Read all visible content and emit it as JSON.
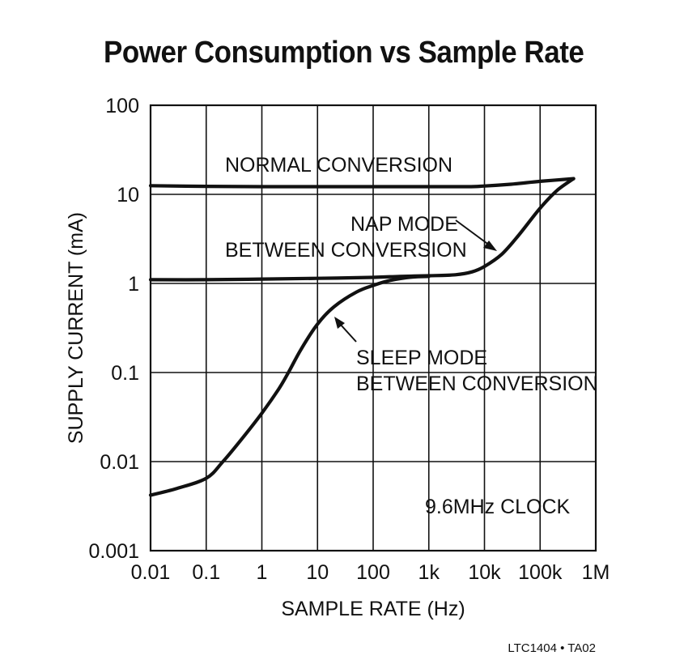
{
  "chart_data": {
    "type": "line",
    "title": "Power Consumption vs Sample Rate",
    "xlabel": "SAMPLE RATE (Hz)",
    "ylabel": "SUPPLY CURRENT (mA)",
    "xscale": "log",
    "yscale": "log",
    "xlim": [
      0.01,
      1000000
    ],
    "ylim": [
      0.001,
      100
    ],
    "grid": true,
    "x_ticks": [
      {
        "value": 0.01,
        "label": "0.01"
      },
      {
        "value": 0.1,
        "label": "0.1"
      },
      {
        "value": 1,
        "label": "1"
      },
      {
        "value": 10,
        "label": "10"
      },
      {
        "value": 100,
        "label": "100"
      },
      {
        "value": 1000,
        "label": "1k"
      },
      {
        "value": 10000,
        "label": "10k"
      },
      {
        "value": 100000,
        "label": "100k"
      },
      {
        "value": 1000000,
        "label": "1M"
      }
    ],
    "y_ticks": [
      {
        "value": 0.001,
        "label": "0.001"
      },
      {
        "value": 0.01,
        "label": "0.01"
      },
      {
        "value": 0.1,
        "label": "0.1"
      },
      {
        "value": 1,
        "label": "1"
      },
      {
        "value": 10,
        "label": "10"
      },
      {
        "value": 100,
        "label": "100"
      }
    ],
    "series": [
      {
        "name": "NORMAL CONVERSION",
        "x": [
          0.01,
          0.1,
          1,
          10,
          100,
          1000,
          5000,
          10000,
          30000,
          100000,
          400000
        ],
        "y": [
          12.5,
          12.3,
          12.2,
          12.2,
          12.2,
          12.2,
          12.2,
          12.4,
          13,
          14,
          15
        ]
      },
      {
        "name": "NAP MODE BETWEEN CONVERSION",
        "x": [
          0.01,
          0.1,
          1,
          10,
          100,
          300,
          1000,
          3000,
          6000,
          10000,
          20000,
          40000,
          100000,
          200000,
          400000
        ],
        "y": [
          1.1,
          1.1,
          1.12,
          1.14,
          1.17,
          1.2,
          1.22,
          1.25,
          1.35,
          1.55,
          2.1,
          3.4,
          7,
          11,
          15
        ]
      },
      {
        "name": "SLEEP MODE BETWEEN CONVERSION",
        "x": [
          0.01,
          0.03,
          0.1,
          0.2,
          0.5,
          1,
          2,
          3,
          5,
          10,
          20,
          50,
          100,
          200,
          500,
          1000
        ],
        "y": [
          0.0042,
          0.005,
          0.0065,
          0.01,
          0.02,
          0.035,
          0.065,
          0.1,
          0.18,
          0.35,
          0.55,
          0.8,
          0.95,
          1.08,
          1.18,
          1.2
        ]
      }
    ],
    "annotations": {
      "normal": "NORMAL CONVERSION",
      "nap_line1": "NAP MODE",
      "nap_line2": "BETWEEN CONVERSION",
      "sleep_line1": "SLEEP MODE",
      "sleep_line2": "BETWEEN CONVERSION",
      "clock": "9.6MHz CLOCK"
    },
    "footnote": "LTC1404 • TA02"
  }
}
